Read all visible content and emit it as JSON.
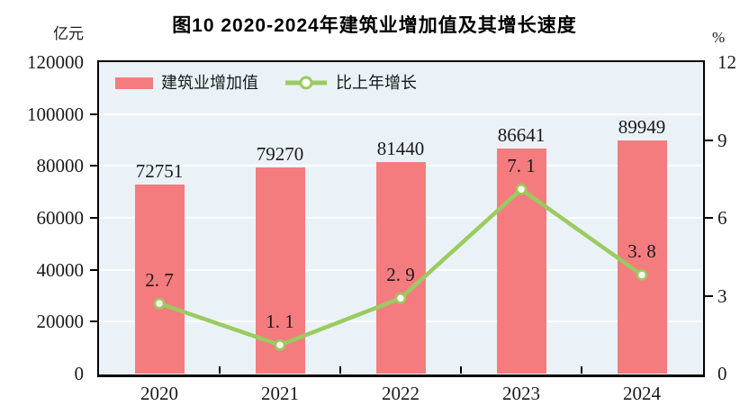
{
  "title": "图10  2020-2024年建筑业增加值及其增长速度",
  "colors": {
    "bar": "#f47c7f",
    "line": "#9acb60",
    "marker_fill": "#fffff2",
    "plot_background": "#eaf2f7",
    "gridline": "#ffffff",
    "axis": "#000000",
    "text": "#1a1a1a"
  },
  "legend": {
    "bar_label": "建筑业增加值",
    "line_label": "比上年增长"
  },
  "chart_data": {
    "type": "bar+line combo (dual axis)",
    "categories": [
      "2020",
      "2021",
      "2022",
      "2023",
      "2024"
    ],
    "series": [
      {
        "name": "建筑业增加值",
        "type": "bar",
        "axis": "left",
        "values": [
          72751,
          79270,
          81440,
          86641,
          89949
        ],
        "labels": [
          "72751",
          "79270",
          "81440",
          "86641",
          "89949"
        ]
      },
      {
        "name": "比上年增长",
        "type": "line",
        "axis": "right",
        "values": [
          2.7,
          1.1,
          2.9,
          7.1,
          3.8
        ],
        "labels": [
          "2. 7",
          "1. 1",
          "2. 9",
          "7. 1",
          "3. 8"
        ]
      }
    ],
    "left_axis": {
      "unit": "亿元",
      "min": 0,
      "max": 120000,
      "step": 20000,
      "ticks": [
        "0",
        "20000",
        "40000",
        "60000",
        "80000",
        "100000",
        "120000"
      ]
    },
    "right_axis": {
      "unit": "%",
      "min": 0,
      "max": 12,
      "step": 3,
      "ticks": [
        "0",
        "3",
        "6",
        "9",
        "12"
      ]
    },
    "grid": "horizontal white gridlines at each left-axis step",
    "legend_position": "inside plot, top-left"
  }
}
